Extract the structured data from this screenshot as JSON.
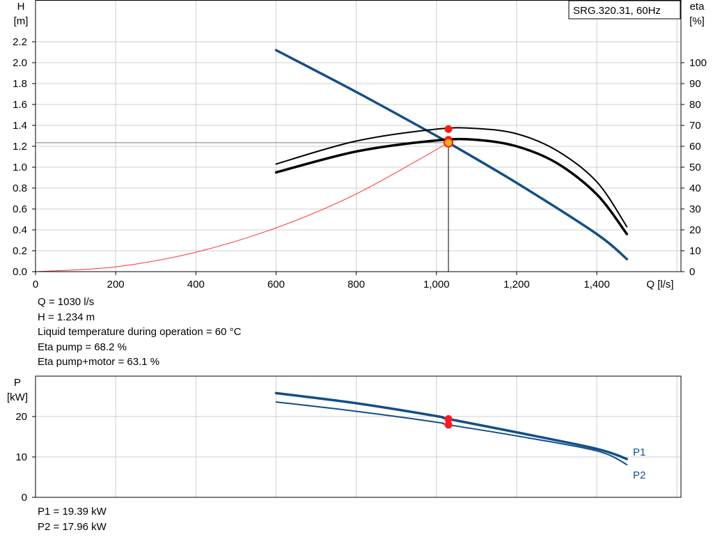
{
  "model_label": "SRG.320.31, 60Hz",
  "colors": {
    "h_curve": "#124e88",
    "eta_curve": "#000000",
    "system_curve": "#ff3030",
    "power_curve": "#124e88",
    "op_point": "#ff1a1a",
    "duty_point": "#f5b400",
    "grid": "#cfcfcf"
  },
  "head_axis": {
    "symbol": "H",
    "unit": "[m]"
  },
  "eta_axis": {
    "symbol": "eta",
    "unit": "[%]"
  },
  "flow_axis": {
    "label": "Q [l/s]"
  },
  "power_axis": {
    "symbol": "P",
    "unit": "[kW]"
  },
  "info": {
    "q": "Q = 1030 l/s",
    "h": "H = 1.234 m",
    "temp": "Liquid temperature during operation = 60 °C",
    "eta_pump": "Eta pump = 68.2 %",
    "eta_total": "Eta pump+motor = 63.1 %"
  },
  "power_info": {
    "p1": "P1 = 19.39 kW",
    "p2": "P2 = 17.96 kW"
  },
  "chart_data": [
    {
      "type": "line",
      "title": "SRG.320.31, 60Hz",
      "xlabel": "Q [l/s]",
      "ylabel": "H [m]",
      "y2label": "eta [%]",
      "xlim": [
        0,
        1610
      ],
      "ylim": [
        0,
        2.6
      ],
      "y2lim": [
        0,
        130
      ],
      "x_ticks": [
        0,
        200,
        400,
        600,
        800,
        1000,
        1200,
        1400
      ],
      "x_tick_labels": [
        "0",
        "200",
        "400",
        "600",
        "800",
        "1,000",
        "1,200",
        "1,400"
      ],
      "y_ticks": [
        0,
        0.2,
        0.4,
        0.6,
        0.8,
        1.0,
        1.2,
        1.4,
        1.6,
        1.8,
        2.0,
        2.2
      ],
      "y_tick_labels": [
        "0.0",
        "0.2",
        "0.4",
        "0.6",
        "0.8",
        "1.0",
        "1.2",
        "1.4",
        "1.6",
        "1.8",
        "2.0",
        "2.2"
      ],
      "y2_ticks": [
        0,
        10,
        20,
        30,
        40,
        50,
        60,
        70,
        80,
        90,
        100
      ],
      "y2_tick_labels": [
        "0",
        "10",
        "20",
        "30",
        "40",
        "50",
        "60",
        "70",
        "80",
        "90",
        "100"
      ],
      "grid": true,
      "series": [
        {
          "role": "head",
          "axis": "left",
          "x": [
            600,
            800,
            1000,
            1030,
            1200,
            1400,
            1475
          ],
          "y": [
            2.12,
            1.72,
            1.3,
            1.234,
            0.85,
            0.36,
            0.12
          ]
        },
        {
          "role": "eta_pump",
          "axis": "right",
          "x": [
            600,
            800,
            1000,
            1100,
            1200,
            1300,
            1400,
            1475
          ],
          "y": [
            51.5,
            62.5,
            68.2,
            68.5,
            66,
            58,
            43,
            21.5
          ]
        },
        {
          "role": "eta_total",
          "axis": "right",
          "x": [
            600,
            800,
            1000,
            1100,
            1200,
            1300,
            1400,
            1475
          ],
          "y": [
            47.5,
            57.5,
            62.8,
            63.1,
            60,
            52,
            37,
            18
          ]
        },
        {
          "role": "system",
          "axis": "left",
          "x": [
            0,
            200,
            400,
            600,
            800,
            1030
          ],
          "y": [
            0,
            0.046,
            0.186,
            0.419,
            0.744,
            1.234
          ]
        }
      ],
      "operating_point": {
        "q": 1030,
        "h": 1.234,
        "eta_pump": 68.2,
        "eta_total": 63.1
      }
    },
    {
      "type": "line",
      "ylabel": "P [kW]",
      "xlim": [
        0,
        1610
      ],
      "ylim": [
        0,
        30
      ],
      "y_ticks": [
        0,
        10,
        20
      ],
      "y_tick_labels": [
        "0",
        "10",
        "20"
      ],
      "grid": true,
      "series": [
        {
          "name": "P1",
          "x": [
            600,
            800,
            1000,
            1030,
            1200,
            1400,
            1475
          ],
          "y": [
            25.8,
            23.3,
            20.1,
            19.39,
            16.1,
            12,
            9.5
          ]
        },
        {
          "name": "P2",
          "x": [
            600,
            800,
            1000,
            1030,
            1200,
            1400,
            1475
          ],
          "y": [
            23.6,
            21.3,
            18.6,
            17.96,
            15.2,
            11.5,
            8.1
          ]
        }
      ],
      "operating_point": {
        "q": 1030,
        "p1": 19.39,
        "p2": 17.96
      }
    }
  ]
}
